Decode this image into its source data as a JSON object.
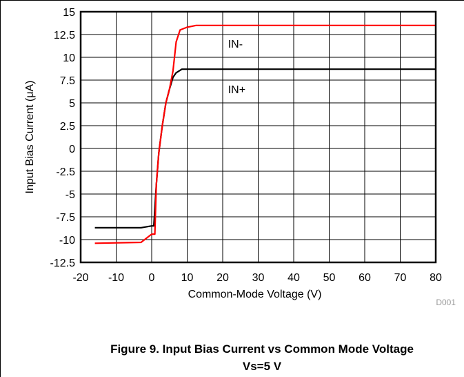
{
  "chart_data": {
    "type": "line",
    "xlabel": "Common-Mode Voltage (V)",
    "ylabel": "Input Bias Current (μA)",
    "xlim": [
      -20,
      80
    ],
    "ylim": [
      -12.5,
      15
    ],
    "xticks": [
      -20,
      -10,
      0,
      10,
      20,
      30,
      40,
      50,
      60,
      70,
      80
    ],
    "yticks": [
      -12.5,
      -10,
      -7.5,
      -5,
      -2.5,
      0,
      2.5,
      5,
      7.5,
      10,
      12.5,
      15
    ],
    "ytick_labels": [
      "-12.5",
      "-10",
      "-7.5",
      "-5",
      "-2.5",
      "0",
      "2.5",
      "5",
      "7.5",
      "10",
      "12.5",
      "15"
    ],
    "grid": true,
    "series": [
      {
        "name": "IN+",
        "color": "#000000",
        "x": [
          -16,
          -3,
          0,
          0.6,
          1.3,
          2,
          3,
          4,
          5,
          6,
          6.9,
          8.5,
          80
        ],
        "y": [
          -8.7,
          -8.7,
          -8.5,
          -8.5,
          -4,
          -0.5,
          2.5,
          5,
          6.5,
          7.8,
          8.3,
          8.7,
          8.7
        ]
      },
      {
        "name": "IN-",
        "color": "#ff0000",
        "x": [
          -16,
          -3,
          0,
          0.9,
          1.3,
          2,
          3,
          4,
          5,
          6,
          6.9,
          8,
          10,
          12.5,
          80
        ],
        "y": [
          -10.4,
          -10.3,
          -9.4,
          -9.4,
          -4,
          -0.5,
          2.5,
          5,
          6.5,
          8.5,
          11.7,
          13,
          13.3,
          13.5,
          13.5
        ]
      }
    ],
    "annotations": [
      {
        "text": "IN-",
        "x": 21.5,
        "y": 11.5
      },
      {
        "text": "IN+",
        "x": 21.5,
        "y": 6.5
      }
    ],
    "code": "D001"
  },
  "caption": {
    "line1": "Figure 9. Input Bias Current vs Common Mode Voltage",
    "line2": "Vs=5 V"
  }
}
